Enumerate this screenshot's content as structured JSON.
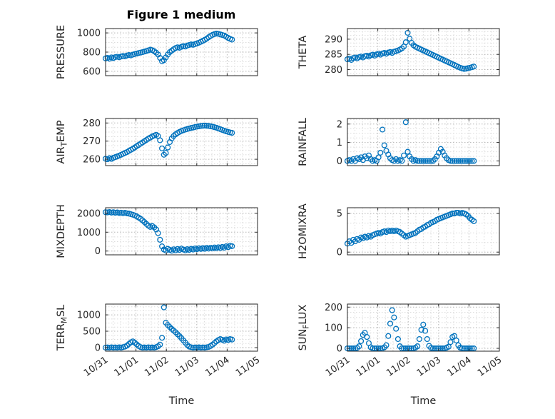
{
  "figure": {
    "title": "Figure 1 medium",
    "background": "#ffffff",
    "marker_color": "#0072BD",
    "axis_color": "#262626",
    "grid_color": "#b5b5b5",
    "minor_grid_color": "#dcdcdc"
  },
  "time_axis": {
    "xlabel": "Time",
    "xlim": [
      0,
      5
    ],
    "tick_values": [
      0,
      1,
      2,
      3,
      4,
      5
    ],
    "tick_labels": [
      "10/31",
      "11/01",
      "11/02",
      "11/03",
      "11/04",
      "11/05"
    ],
    "minor_step": 0.25,
    "x": [
      0,
      0.064,
      0.128,
      0.192,
      0.256,
      0.32,
      0.384,
      0.448,
      0.512,
      0.576,
      0.64,
      0.704,
      0.768,
      0.832,
      0.896,
      0.96,
      1.024,
      1.088,
      1.152,
      1.216,
      1.28,
      1.344,
      1.408,
      1.472,
      1.536,
      1.6,
      1.664,
      1.728,
      1.792,
      1.856,
      1.92,
      1.984,
      2.048,
      2.112,
      2.176,
      2.24,
      2.304,
      2.368,
      2.432,
      2.496,
      2.56,
      2.624,
      2.688,
      2.752,
      2.816,
      2.88,
      2.944,
      3.008,
      3.072,
      3.136,
      3.2,
      3.264,
      3.328,
      3.392,
      3.456,
      3.52,
      3.584,
      3.648,
      3.712,
      3.776,
      3.84,
      3.904,
      3.968,
      4.032,
      4.096,
      4.16
    ]
  },
  "chart_data": [
    {
      "type": "scatter",
      "id": "pressure",
      "ylabel": "PRESSURE",
      "ylabel_parts": [
        {
          "text": "PRESSURE"
        }
      ],
      "yticks": [
        600,
        800,
        1000
      ],
      "ylim": [
        555,
        1045
      ],
      "y_minor": 50,
      "values": [
        735,
        740,
        732,
        745,
        738,
        748,
        752,
        746,
        755,
        760,
        756,
        764,
        770,
        766,
        774,
        780,
        785,
        790,
        795,
        800,
        806,
        812,
        818,
        825,
        820,
        810,
        795,
        775,
        740,
        705,
        715,
        745,
        775,
        800,
        815,
        830,
        842,
        850,
        845,
        855,
        862,
        858,
        868,
        874,
        880,
        876,
        884,
        890,
        898,
        908,
        918,
        928,
        940,
        955,
        968,
        980,
        988,
        992,
        990,
        984,
        978,
        972,
        960,
        948,
        938,
        930
      ]
    },
    {
      "type": "scatter",
      "id": "theta",
      "ylabel": "THETA",
      "ylabel_parts": [
        {
          "text": "THETA"
        }
      ],
      "yticks": [
        280,
        285,
        290
      ],
      "ylim": [
        278,
        293.5
      ],
      "y_minor": 1.25,
      "values": [
        283.4,
        283.6,
        283.2,
        283.8,
        284,
        283.7,
        284.1,
        284.3,
        284,
        284.4,
        284.6,
        284.3,
        284.7,
        284.9,
        284.6,
        285,
        285.2,
        284.9,
        285.3,
        285.5,
        285.2,
        285.6,
        285.8,
        285.5,
        285.9,
        286.1,
        286.3,
        286.6,
        287,
        287.6,
        289,
        292.1,
        290.2,
        288.8,
        288,
        287.5,
        287.2,
        286.9,
        286.6,
        286.3,
        286,
        285.7,
        285.4,
        285.1,
        284.8,
        284.5,
        284.2,
        283.9,
        283.6,
        283.3,
        283,
        282.7,
        282.4,
        282.1,
        281.8,
        281.5,
        281.2,
        280.9,
        280.6,
        280.4,
        280.2,
        280.3,
        280.5,
        280.6,
        280.8,
        281
      ]
    },
    {
      "type": "scatter",
      "id": "air-temp",
      "ylabel": "AIR_TEMP",
      "ylabel_parts": [
        {
          "text": "AIR"
        },
        {
          "text": "T",
          "sub": true
        },
        {
          "text": "EMP"
        }
      ],
      "yticks": [
        260,
        270,
        280
      ],
      "ylim": [
        256.5,
        282.5
      ],
      "y_minor": 2.5,
      "values": [
        260.3,
        260,
        260.6,
        260.2,
        260.8,
        261.2,
        261.6,
        262,
        262.5,
        263,
        263.5,
        264,
        264.6,
        265.2,
        265.8,
        266.5,
        267.2,
        267.9,
        268.6,
        269.3,
        270,
        270.7,
        271.4,
        272,
        272.6,
        273.1,
        273.5,
        272.8,
        270.5,
        266,
        262.5,
        263.5,
        266.5,
        269.5,
        271.5,
        272.8,
        273.8,
        274.5,
        275.1,
        275.6,
        276,
        276.4,
        276.7,
        277,
        277.3,
        277.5,
        277.8,
        278,
        278.2,
        278.4,
        278.5,
        278.6,
        278.5,
        278.4,
        278.2,
        278,
        277.7,
        277.4,
        277,
        276.6,
        276.2,
        275.8,
        275.4,
        275.1,
        274.8,
        274.6
      ]
    },
    {
      "type": "scatter",
      "id": "rainfall",
      "ylabel": "RAINFALL",
      "ylabel_parts": [
        {
          "text": "RAINFALL"
        }
      ],
      "yticks": [
        0,
        1,
        2
      ],
      "ylim": [
        -0.25,
        2.3
      ],
      "y_minor": 0.25,
      "values": [
        0,
        0.05,
        0,
        0.1,
        0,
        0.15,
        0.1,
        0.2,
        0.05,
        0.25,
        0.15,
        0.3,
        0.1,
        0,
        0.05,
        0,
        0.2,
        0.45,
        1.7,
        0.85,
        0.55,
        0.35,
        0.15,
        0.05,
        0,
        0.1,
        0,
        0.05,
        0,
        0.3,
        2.1,
        0.5,
        0.25,
        0.1,
        0,
        0.05,
        0,
        0,
        0,
        0,
        0,
        0,
        0,
        0,
        0,
        0.1,
        0.25,
        0.45,
        0.65,
        0.5,
        0.3,
        0.15,
        0.05,
        0,
        0,
        0,
        0,
        0,
        0,
        0,
        0,
        0,
        0,
        0,
        0,
        0
      ]
    },
    {
      "type": "scatter",
      "id": "mixdepth",
      "ylabel": "MIXDEPTH",
      "ylabel_parts": [
        {
          "text": "MIXDEPTH"
        }
      ],
      "yticks": [
        0,
        1000,
        2000
      ],
      "ylim": [
        -200,
        2300
      ],
      "y_minor": 250,
      "values": [
        2060,
        2050,
        2070,
        2040,
        2060,
        2030,
        2050,
        2020,
        2040,
        2010,
        2030,
        2000,
        1990,
        1960,
        1930,
        1890,
        1840,
        1780,
        1710,
        1630,
        1540,
        1440,
        1350,
        1280,
        1330,
        1260,
        1150,
        950,
        600,
        250,
        80,
        30,
        120,
        60,
        20,
        90,
        40,
        110,
        60,
        130,
        80,
        40,
        100,
        60,
        120,
        80,
        140,
        100,
        150,
        110,
        160,
        120,
        170,
        130,
        180,
        140,
        190,
        150,
        200,
        160,
        220,
        180,
        250,
        210,
        280,
        260
      ]
    },
    {
      "type": "scatter",
      "id": "h2omixra",
      "ylabel": "H2OMIXRA",
      "ylabel_parts": [
        {
          "text": "H2OMIXRA"
        }
      ],
      "yticks": [
        0,
        5
      ],
      "ylim": [
        -0.35,
        5.75
      ],
      "y_minor": 1.25,
      "values": [
        1.1,
        1.4,
        1.2,
        1.6,
        1.4,
        1.7,
        1.6,
        1.9,
        1.8,
        2,
        1.9,
        2.1,
        2,
        2.2,
        2.3,
        2.4,
        2.5,
        2.4,
        2.6,
        2.7,
        2.6,
        2.8,
        2.7,
        2.8,
        2.7,
        2.8,
        2.7,
        2.6,
        2.4,
        2.2,
        2,
        2.1,
        2.2,
        2.3,
        2.4,
        2.5,
        2.7,
        2.9,
        3,
        3.2,
        3.3,
        3.5,
        3.6,
        3.8,
        3.9,
        4,
        4.2,
        4.3,
        4.4,
        4.5,
        4.6,
        4.7,
        4.8,
        4.9,
        5,
        5,
        5.1,
        5.1,
        5,
        5.1,
        5,
        4.9,
        4.7,
        4.4,
        4.2,
        4
      ]
    },
    {
      "type": "scatter",
      "id": "terr-msl",
      "ylabel": "TERR_MSL",
      "ylabel_parts": [
        {
          "text": "TERR"
        },
        {
          "text": "M",
          "sub": true
        },
        {
          "text": "SL"
        }
      ],
      "yticks": [
        0,
        500,
        1000
      ],
      "ylim": [
        -110,
        1330
      ],
      "y_minor": 125,
      "values": [
        0,
        5,
        0,
        10,
        0,
        5,
        0,
        10,
        0,
        15,
        30,
        60,
        110,
        160,
        190,
        150,
        100,
        50,
        15,
        0,
        5,
        0,
        10,
        0,
        5,
        0,
        15,
        40,
        90,
        300,
        1230,
        760,
        690,
        630,
        570,
        520,
        470,
        410,
        350,
        290,
        220,
        150,
        80,
        30,
        10,
        0,
        5,
        0,
        10,
        0,
        5,
        0,
        10,
        20,
        50,
        90,
        140,
        190,
        230,
        260,
        240,
        210,
        250,
        230,
        260,
        245
      ]
    },
    {
      "type": "scatter",
      "id": "sun-flux",
      "ylabel": "SUN_FLUX",
      "ylabel_parts": [
        {
          "text": "SUN"
        },
        {
          "text": "F",
          "sub": true
        },
        {
          "text": "LUX"
        }
      ],
      "yticks": [
        0,
        100,
        200
      ],
      "ylim": [
        -14,
        215
      ],
      "y_minor": 25,
      "values": [
        0,
        0,
        0,
        0,
        0,
        2,
        10,
        35,
        65,
        75,
        55,
        25,
        5,
        0,
        0,
        0,
        0,
        0,
        0,
        5,
        15,
        60,
        120,
        185,
        150,
        95,
        45,
        10,
        0,
        0,
        0,
        0,
        0,
        0,
        0,
        3,
        10,
        45,
        90,
        115,
        85,
        45,
        12,
        2,
        0,
        0,
        0,
        0,
        0,
        0,
        0,
        3,
        8,
        30,
        55,
        60,
        38,
        15,
        3,
        0,
        0,
        0,
        0,
        0,
        0,
        0
      ]
    }
  ]
}
